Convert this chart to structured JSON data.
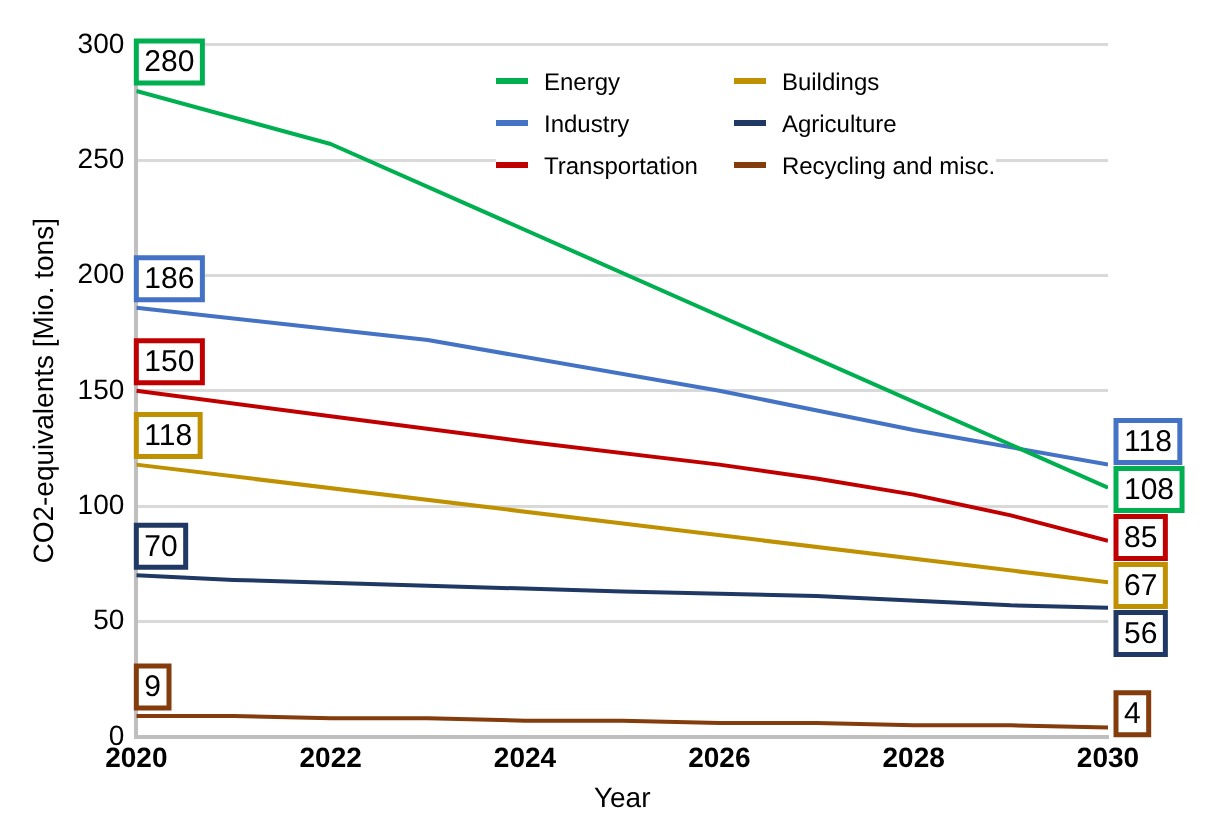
{
  "chart_data": {
    "type": "line",
    "xlabel": "Year",
    "ylabel": "CO2-equivalents [Mio. tons]",
    "xlim": [
      2020,
      2030
    ],
    "xticks": [
      2020,
      2022,
      2024,
      2026,
      2028,
      2030
    ],
    "ylim": [
      0,
      300
    ],
    "yticks": [
      0,
      50,
      100,
      150,
      200,
      250,
      300
    ],
    "grid": "y",
    "legend": "top right",
    "marker": "none",
    "line_style": "solid",
    "series": [
      {
        "name": "Energy",
        "color": "#00b050",
        "x": [
          2020,
          2022,
          2030
        ],
        "values": [
          280,
          257,
          108
        ],
        "value_labels": [
          "280",
          null,
          "108"
        ]
      },
      {
        "name": "Industry",
        "color": "#4472c4",
        "x": [
          2020,
          2023,
          2026,
          2028,
          2030
        ],
        "values": [
          186,
          172,
          150,
          133,
          118
        ],
        "value_labels": [
          "186",
          null,
          null,
          null,
          "118"
        ]
      },
      {
        "name": "Transportation",
        "color": "#c00000",
        "x": [
          2020,
          2022,
          2024,
          2026,
          2027,
          2028,
          2029,
          2030
        ],
        "values": [
          150,
          139,
          128,
          118,
          112,
          105,
          96,
          85
        ],
        "value_labels": [
          "150",
          null,
          null,
          null,
          null,
          null,
          null,
          "85"
        ]
      },
      {
        "name": "Buildings",
        "color": "#bf9000",
        "x": [
          2020,
          2030
        ],
        "values": [
          118,
          67
        ],
        "value_labels": [
          "118",
          "67"
        ]
      },
      {
        "name": "Agriculture",
        "color": "#1f3864",
        "x": [
          2020,
          2021,
          2025,
          2027,
          2029,
          2030
        ],
        "values": [
          70,
          68,
          63,
          61,
          57,
          56
        ],
        "value_labels": [
          "70",
          null,
          null,
          null,
          null,
          "56"
        ]
      },
      {
        "name": "Recycling and misc.",
        "color": "#843c0c",
        "x": [
          2020,
          2021,
          2022,
          2023,
          2024,
          2025,
          2026,
          2027,
          2028,
          2029,
          2030
        ],
        "values": [
          9,
          9,
          8,
          8,
          7,
          7,
          6,
          6,
          5,
          5,
          4
        ],
        "value_labels": [
          "9",
          null,
          null,
          null,
          null,
          null,
          null,
          null,
          null,
          null,
          "4"
        ]
      }
    ]
  }
}
